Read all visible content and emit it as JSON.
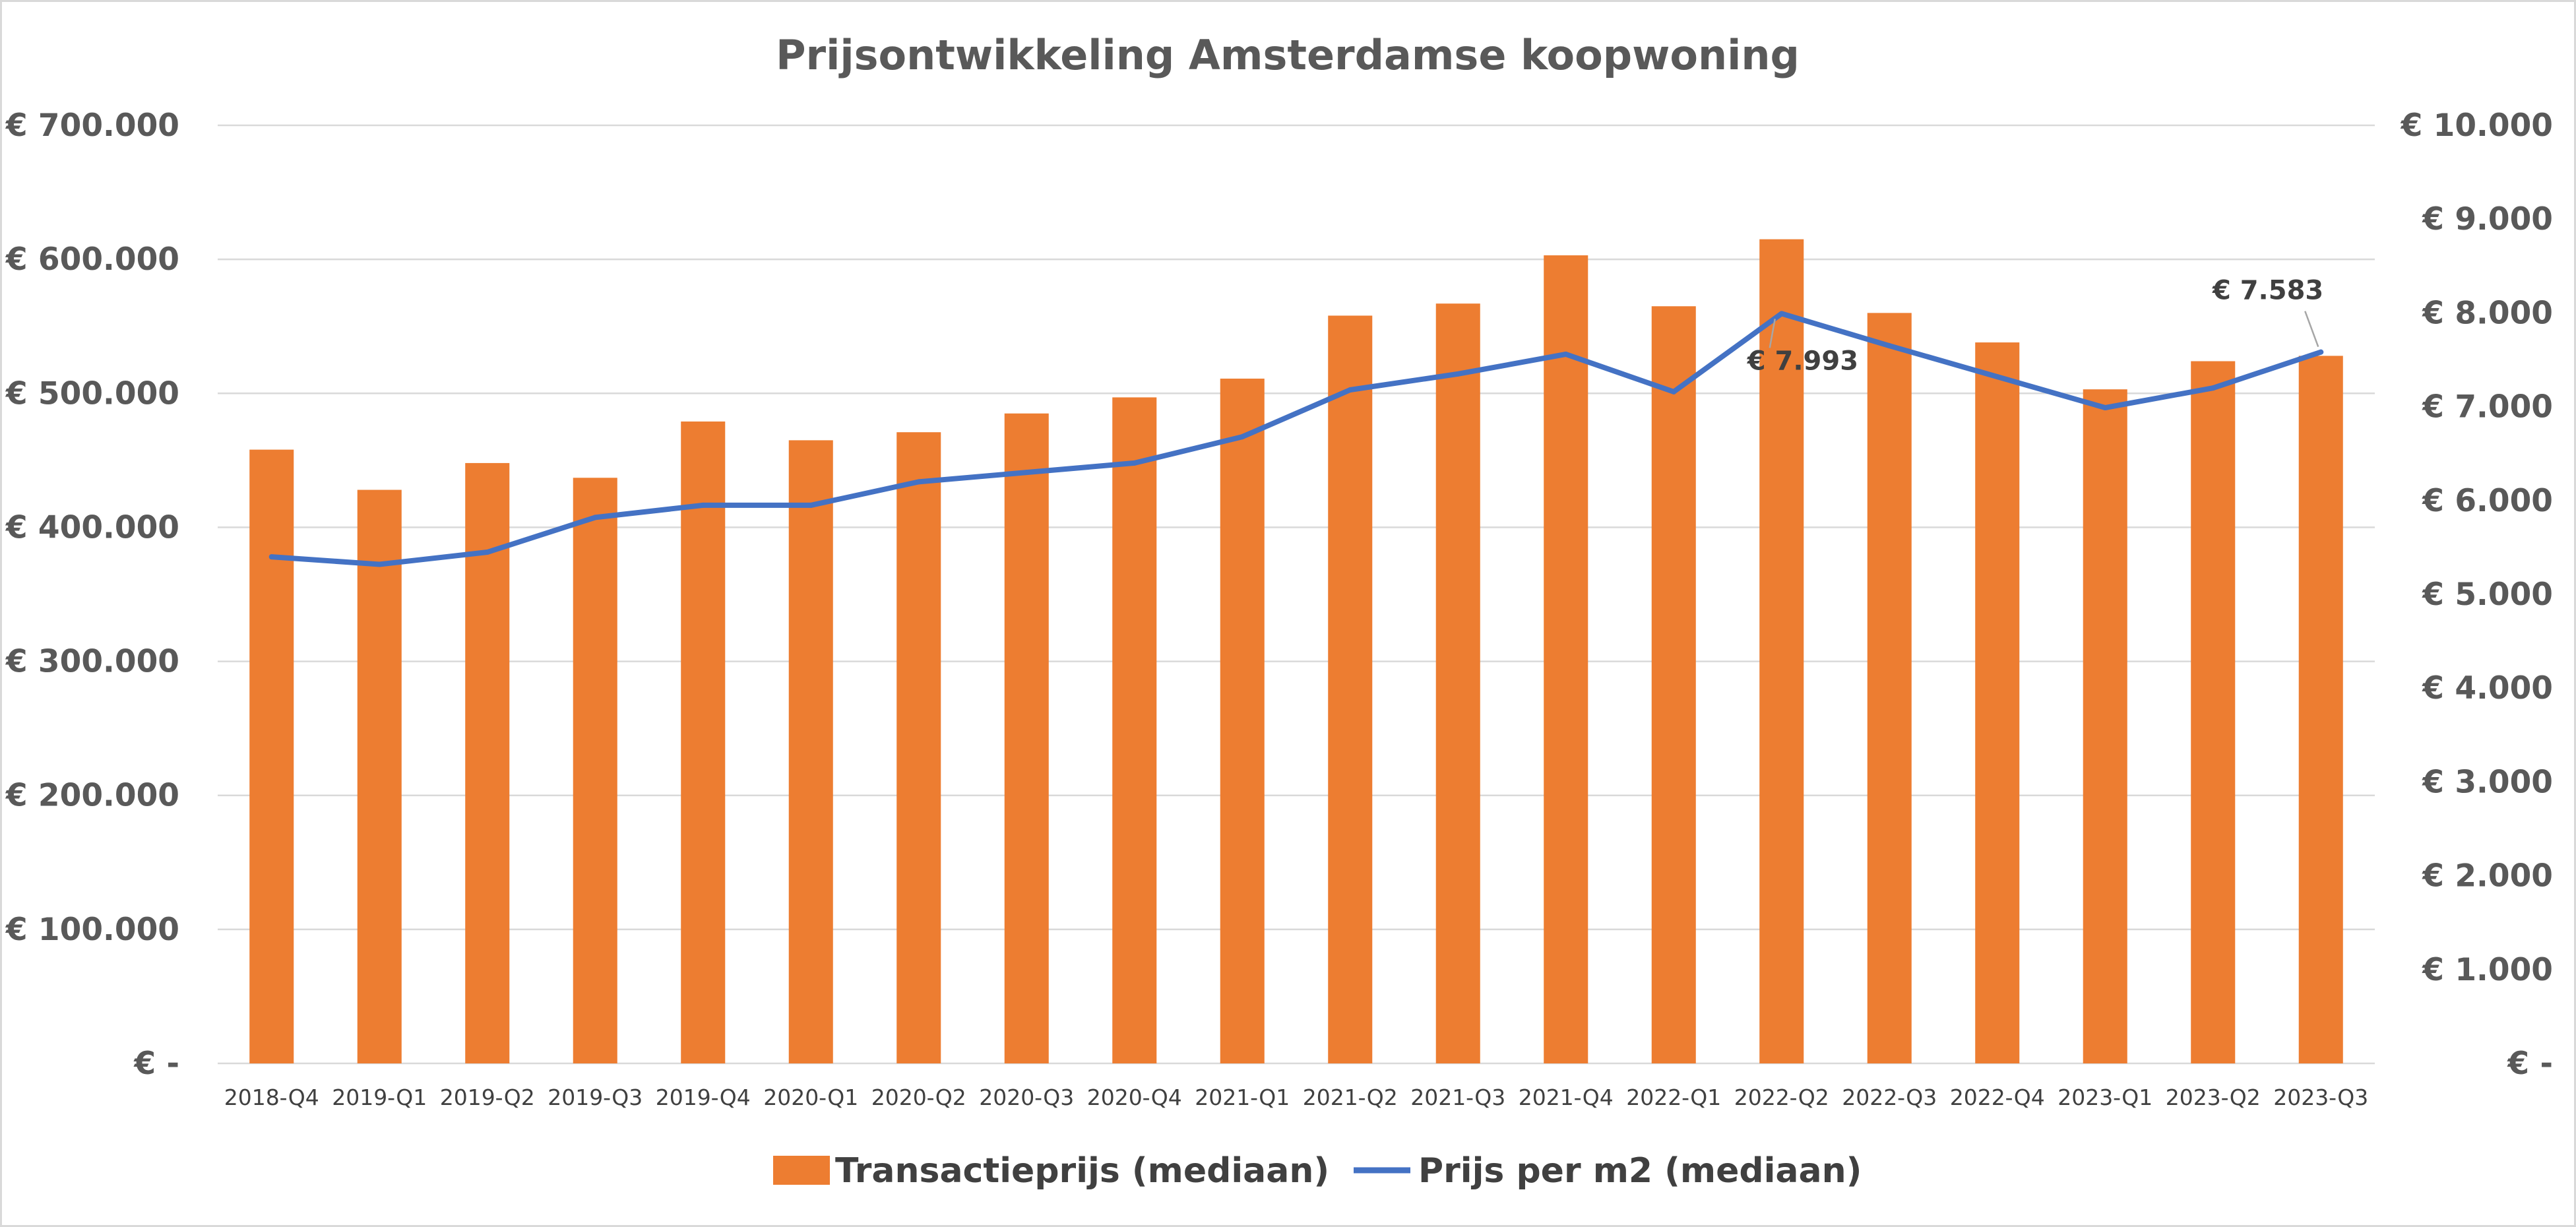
{
  "chart_data": {
    "type": "bar",
    "title": "Prijsontwikkeling Amsterdamse koopwoning",
    "categories": [
      "2018-Q4",
      "2019-Q1",
      "2019-Q2",
      "2019-Q3",
      "2019-Q4",
      "2020-Q1",
      "2020-Q2",
      "2020-Q3",
      "2020-Q4",
      "2021-Q1",
      "2021-Q2",
      "2021-Q3",
      "2021-Q4",
      "2022-Q1",
      "2022-Q2",
      "2022-Q3",
      "2022-Q4",
      "2023-Q1",
      "2023-Q2",
      "2023-Q3"
    ],
    "series": [
      {
        "name": "Transactieprijs (mediaan)",
        "type": "bar",
        "axis": "left",
        "color": "#ED7D31",
        "values": [
          458000,
          428000,
          448000,
          437000,
          479000,
          465000,
          471000,
          485000,
          497000,
          511000,
          558000,
          567000,
          603000,
          565000,
          615000,
          560000,
          538000,
          503000,
          524000,
          528000
        ]
      },
      {
        "name": "Prijs per m2 (mediaan)",
        "type": "line",
        "axis": "right",
        "color": "#4472C4",
        "values": [
          5400,
          5320,
          5450,
          5820,
          5950,
          5950,
          6200,
          6300,
          6400,
          6680,
          7180,
          7350,
          7560,
          7160,
          7993,
          7650,
          7320,
          6990,
          7200,
          7583
        ]
      }
    ],
    "y_left": {
      "min": 0,
      "max": 700000,
      "step": 100000,
      "tick_labels": [
        "€ -",
        "€ 100.000",
        "€ 200.000",
        "€ 300.000",
        "€ 400.000",
        "€ 500.000",
        "€ 600.000",
        "€ 700.000"
      ]
    },
    "y_right": {
      "min": 0,
      "max": 10000,
      "step": 1000,
      "tick_labels": [
        "€ -",
        "€ 1.000",
        "€ 2.000",
        "€ 3.000",
        "€ 4.000",
        "€ 5.000",
        "€ 6.000",
        "€ 7.000",
        "€ 8.000",
        "€ 9.000",
        "€ 10.000"
      ]
    },
    "data_labels": [
      {
        "series": 1,
        "index": 14,
        "text": "€ 7.993"
      },
      {
        "series": 1,
        "index": 19,
        "text": "€ 7.583"
      }
    ],
    "grid": true,
    "legend": "bottom"
  }
}
